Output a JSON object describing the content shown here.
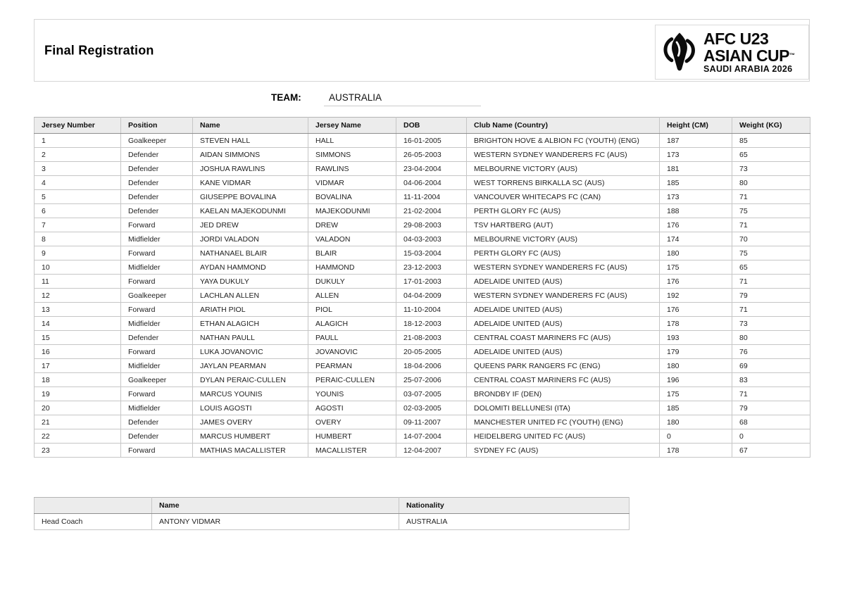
{
  "header": {
    "title": "Final Registration",
    "logo": {
      "line1": "AFC U23",
      "line2": "ASIAN CUP",
      "tm": "™",
      "line3": "SAUDI ARABIA 2026",
      "icon": "afc-trophy-icon"
    }
  },
  "team": {
    "label": "TEAM:",
    "value": "AUSTRALIA"
  },
  "players_table": {
    "columns": [
      "Jersey Number",
      "Position",
      "Name",
      "Jersey Name",
      "DOB",
      "Club Name (Country)",
      "Height (CM)",
      "Weight (KG)"
    ],
    "rows": [
      [
        "1",
        "Goalkeeper",
        "STEVEN HALL",
        "HALL",
        "16-01-2005",
        "BRIGHTON HOVE & ALBION FC (YOUTH) (ENG)",
        "187",
        "85"
      ],
      [
        "2",
        "Defender",
        "AIDAN SIMMONS",
        "SIMMONS",
        "26-05-2003",
        "WESTERN SYDNEY WANDERERS FC (AUS)",
        "173",
        "65"
      ],
      [
        "3",
        "Defender",
        "JOSHUA RAWLINS",
        "RAWLINS",
        "23-04-2004",
        "MELBOURNE VICTORY (AUS)",
        "181",
        "73"
      ],
      [
        "4",
        "Defender",
        "KANE VIDMAR",
        "VIDMAR",
        "04-06-2004",
        "WEST TORRENS BIRKALLA SC (AUS)",
        "185",
        "80"
      ],
      [
        "5",
        "Defender",
        "GIUSEPPE BOVALINA",
        "BOVALINA",
        "11-11-2004",
        "VANCOUVER WHITECAPS FC (CAN)",
        "173",
        "71"
      ],
      [
        "6",
        "Defender",
        "KAELAN MAJEKODUNMI",
        "MAJEKODUNMI",
        "21-02-2004",
        "PERTH GLORY FC (AUS)",
        "188",
        "75"
      ],
      [
        "7",
        "Forward",
        "JED DREW",
        "DREW",
        "29-08-2003",
        "TSV HARTBERG (AUT)",
        "176",
        "71"
      ],
      [
        "8",
        "Midfielder",
        "JORDI VALADON",
        "VALADON",
        "04-03-2003",
        "MELBOURNE VICTORY (AUS)",
        "174",
        "70"
      ],
      [
        "9",
        "Forward",
        "NATHANAEL BLAIR",
        "BLAIR",
        "15-03-2004",
        "PERTH GLORY FC (AUS)",
        "180",
        "75"
      ],
      [
        "10",
        "Midfielder",
        "AYDAN HAMMOND",
        "HAMMOND",
        "23-12-2003",
        "WESTERN SYDNEY WANDERERS FC (AUS)",
        "175",
        "65"
      ],
      [
        "11",
        "Forward",
        "YAYA DUKULY",
        "DUKULY",
        "17-01-2003",
        "ADELAIDE UNITED (AUS)",
        "176",
        "71"
      ],
      [
        "12",
        "Goalkeeper",
        "LACHLAN ALLEN",
        "ALLEN",
        "04-04-2009",
        "WESTERN SYDNEY WANDERERS FC (AUS)",
        "192",
        "79"
      ],
      [
        "13",
        "Forward",
        "ARIATH PIOL",
        "PIOL",
        "11-10-2004",
        "ADELAIDE UNITED (AUS)",
        "176",
        "71"
      ],
      [
        "14",
        "Midfielder",
        "ETHAN ALAGICH",
        "ALAGICH",
        "18-12-2003",
        "ADELAIDE UNITED (AUS)",
        "178",
        "73"
      ],
      [
        "15",
        "Defender",
        "NATHAN PAULL",
        "PAULL",
        "21-08-2003",
        "CENTRAL COAST MARINERS FC (AUS)",
        "193",
        "80"
      ],
      [
        "16",
        "Forward",
        "LUKA JOVANOVIC",
        "JOVANOVIC",
        "20-05-2005",
        "ADELAIDE UNITED (AUS)",
        "179",
        "76"
      ],
      [
        "17",
        "Midfielder",
        "JAYLAN PEARMAN",
        "PEARMAN",
        "18-04-2006",
        "QUEENS PARK RANGERS FC (ENG)",
        "180",
        "69"
      ],
      [
        "18",
        "Goalkeeper",
        "DYLAN PERAIC-CULLEN",
        "PERAIC-CULLEN",
        "25-07-2006",
        "CENTRAL COAST MARINERS FC (AUS)",
        "196",
        "83"
      ],
      [
        "19",
        "Forward",
        "MARCUS YOUNIS",
        "YOUNIS",
        "03-07-2005",
        "BRONDBY IF (DEN)",
        "175",
        "71"
      ],
      [
        "20",
        "Midfielder",
        "LOUIS AGOSTI",
        "AGOSTI",
        "02-03-2005",
        "DOLOMITI BELLUNESI (ITA)",
        "185",
        "79"
      ],
      [
        "21",
        "Defender",
        "JAMES OVERY",
        "OVERY",
        "09-11-2007",
        "MANCHESTER UNITED FC (YOUTH) (ENG)",
        "180",
        "68"
      ],
      [
        "22",
        "Defender",
        "MARCUS HUMBERT",
        "HUMBERT",
        "14-07-2004",
        "HEIDELBERG UNITED FC (AUS)",
        "0",
        "0"
      ],
      [
        "23",
        "Forward",
        "MATHIAS MACALLISTER",
        "MACALLISTER",
        "12-04-2007",
        "SYDNEY FC (AUS)",
        "178",
        "67"
      ]
    ]
  },
  "staff_table": {
    "columns": [
      "",
      "Name",
      "Nationality"
    ],
    "rows": [
      [
        "Head Coach",
        "ANTONY VIDMAR",
        "AUSTRALIA"
      ]
    ]
  },
  "colors": {
    "brand_black": "#0c0c0c",
    "table_header_bg": "#ececec",
    "border_light": "#c6c6c6",
    "border_dark": "#8f8f8f",
    "team_underline": "#cccccc"
  }
}
